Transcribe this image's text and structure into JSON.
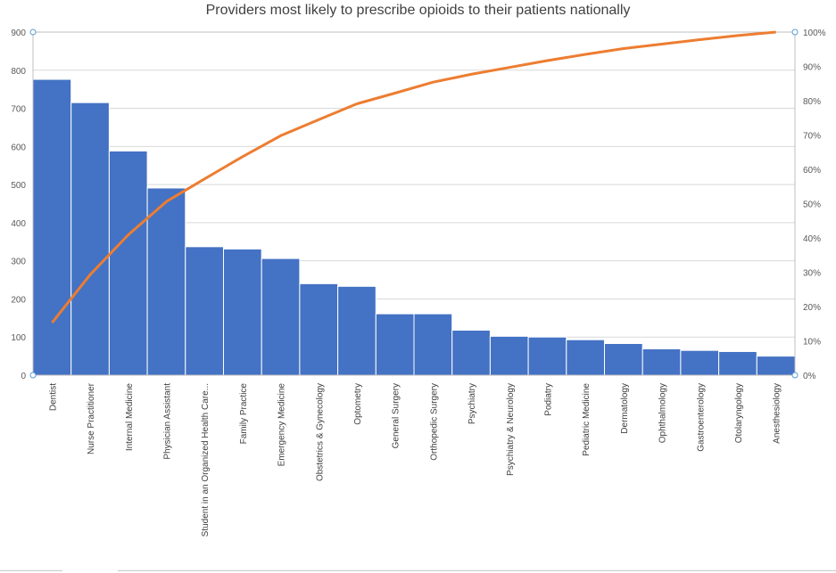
{
  "chart_data": {
    "type": "bar",
    "title": "Providers most likely to prescribe opioids to their patients nationally",
    "categories": [
      "Dentist",
      "Nurse Practitioner",
      "Internal Medicine",
      "Physician Assistant",
      "Student in an Organized Health Care...",
      "Family Practice",
      "Emergency Medicine",
      "Obstetrics & Gynecology",
      "Optometry",
      "General Surgery",
      "Orthopedic Surgery",
      "Psychiatry",
      "Psychiatry & Neurology",
      "Podiatry",
      "Pediatric Medicine",
      "Dermatology",
      "Ophthalmology",
      "Gastroenterology",
      "Otolaryngology",
      "Anesthesiology"
    ],
    "series": [
      {
        "type": "bar",
        "values": [
          776,
          715,
          588,
          491,
          337,
          331,
          306,
          240,
          233,
          161,
          161,
          118,
          102,
          100,
          93,
          83,
          69,
          65,
          62,
          50
        ],
        "color": "#4472c4"
      },
      {
        "type": "line",
        "axis": "right",
        "values": [
          15.3,
          29.3,
          40.9,
          50.6,
          57.2,
          63.7,
          69.8,
          74.5,
          79.1,
          82.2,
          85.4,
          87.7,
          89.7,
          91.7,
          93.5,
          95.2,
          96.5,
          97.8,
          99.0,
          100
        ],
        "color": "#ed7d31"
      }
    ],
    "yticks": [
      "0",
      "100",
      "200",
      "300",
      "400",
      "500",
      "600",
      "700",
      "800",
      "900"
    ],
    "y2ticks": [
      "0%",
      "10%",
      "20%",
      "30%",
      "40%",
      "50%",
      "60%",
      "70%",
      "80%",
      "90%",
      "100%"
    ],
    "ylim": [
      0,
      900
    ],
    "y2lim": [
      0,
      100
    ],
    "grid": true,
    "legend": "none"
  }
}
